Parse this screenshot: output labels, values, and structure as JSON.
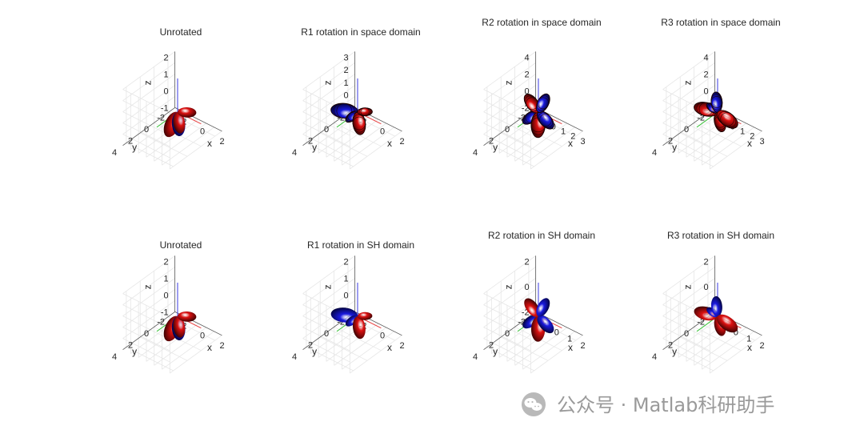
{
  "colors": {
    "lobe_positive": "#dd1111",
    "lobe_negative": "#1a1ae0",
    "axis_x": "#e84040",
    "axis_y": "#30c030",
    "axis_z": "#3a3ae0",
    "grid": "#e6e6e6",
    "box": "#555555",
    "text": "#262626"
  },
  "chart_data": [
    {
      "type": "surface3d",
      "row": 0,
      "col": 0,
      "title": "Unrotated",
      "xlabel": "x",
      "ylabel": "y",
      "zlabel": "z",
      "xticks": [
        "-2",
        "0",
        "2"
      ],
      "yticks": [
        "4",
        "2",
        "0",
        "-2"
      ],
      "zticks": [
        "2",
        "1",
        "0",
        "-1"
      ],
      "mesh": false,
      "lobes": [
        {
          "color": "positive",
          "dir": [
            0.2,
            1.0,
            -0.6
          ],
          "size": 1.0
        },
        {
          "color": "positive",
          "dir": [
            0.6,
            -0.2,
            0.1
          ],
          "size": 0.7
        },
        {
          "color": "positive",
          "dir": [
            -0.5,
            -0.6,
            -0.6
          ],
          "size": 0.8
        },
        {
          "color": "negative",
          "dir": [
            0.3,
            0.2,
            -0.9
          ],
          "size": 0.9
        }
      ]
    },
    {
      "type": "surface3d",
      "row": 0,
      "col": 1,
      "title": "R1 rotation in space domain",
      "xlabel": "x",
      "ylabel": "y",
      "zlabel": "z",
      "xticks": [
        "-2",
        "0",
        "2"
      ],
      "yticks": [
        "4",
        "2",
        "0",
        "-2"
      ],
      "zticks": [
        "3",
        "2",
        "1",
        "0",
        "-1"
      ],
      "mesh": true,
      "lobes": [
        {
          "color": "negative",
          "dir": [
            -0.9,
            0.5,
            0.0
          ],
          "size": 1.0
        },
        {
          "color": "positive",
          "dir": [
            0.1,
            -0.1,
            -1.0
          ],
          "size": 0.85
        },
        {
          "color": "positive",
          "dir": [
            0.5,
            -0.2,
            0.1
          ],
          "size": 0.55
        },
        {
          "color": "negative",
          "dir": [
            -0.2,
            0.4,
            -0.2
          ],
          "size": 0.55
        }
      ]
    },
    {
      "type": "surface3d",
      "row": 0,
      "col": 2,
      "title": "R2 rotation in space domain",
      "xlabel": "x",
      "ylabel": "y",
      "zlabel": "z",
      "xticks": [
        "-1",
        "0",
        "1",
        "2",
        "3"
      ],
      "yticks": [
        "4",
        "2",
        "0",
        "-2"
      ],
      "zticks": [
        "4",
        "2",
        "0",
        "-2"
      ],
      "mesh": true,
      "lobes": [
        {
          "color": "positive",
          "dir": [
            -0.5,
            0.3,
            0.7
          ],
          "size": 0.8
        },
        {
          "color": "negative",
          "dir": [
            0.5,
            0.2,
            0.7
          ],
          "size": 0.75
        },
        {
          "color": "positive",
          "dir": [
            -0.2,
            -0.2,
            -0.9
          ],
          "size": 0.95
        },
        {
          "color": "negative",
          "dir": [
            0.6,
            -0.3,
            -0.6
          ],
          "size": 0.8
        },
        {
          "color": "negative",
          "dir": [
            -0.6,
            0.4,
            -0.5
          ],
          "size": 0.7
        }
      ]
    },
    {
      "type": "surface3d",
      "row": 0,
      "col": 3,
      "title": "R3 rotation in space domain",
      "xlabel": "x",
      "ylabel": "y",
      "zlabel": "z",
      "xticks": [
        "-1",
        "0",
        "1",
        "2",
        "3"
      ],
      "yticks": [
        "4",
        "2",
        "0",
        "-2"
      ],
      "zticks": [
        "4",
        "2",
        "0",
        "-2"
      ],
      "mesh": true,
      "lobes": [
        {
          "color": "positive",
          "dir": [
            -0.8,
            0.4,
            0.1
          ],
          "size": 0.9
        },
        {
          "color": "positive",
          "dir": [
            0.7,
            -0.2,
            -0.3
          ],
          "size": 0.9
        },
        {
          "color": "positive",
          "dir": [
            0.0,
            -0.3,
            -0.9
          ],
          "size": 0.75
        },
        {
          "color": "negative",
          "dir": [
            0.3,
            0.4,
            0.7
          ],
          "size": 0.75
        },
        {
          "color": "negative",
          "dir": [
            -0.2,
            0.5,
            0.5
          ],
          "size": 0.5
        }
      ]
    },
    {
      "type": "surface3d",
      "row": 1,
      "col": 0,
      "title": "Unrotated",
      "xlabel": "x",
      "ylabel": "y",
      "zlabel": "z",
      "xticks": [
        "-2",
        "0",
        "2"
      ],
      "yticks": [
        "4",
        "2",
        "0",
        "-2"
      ],
      "zticks": [
        "2",
        "1",
        "0",
        "-1"
      ],
      "mesh": false,
      "lobes": [
        {
          "color": "positive",
          "dir": [
            0.2,
            1.0,
            -0.6
          ],
          "size": 1.0
        },
        {
          "color": "positive",
          "dir": [
            0.6,
            -0.2,
            0.1
          ],
          "size": 0.7
        },
        {
          "color": "positive",
          "dir": [
            -0.5,
            -0.6,
            -0.6
          ],
          "size": 0.8
        },
        {
          "color": "negative",
          "dir": [
            0.3,
            0.2,
            -0.9
          ],
          "size": 0.9
        }
      ]
    },
    {
      "type": "surface3d",
      "row": 1,
      "col": 1,
      "title": "R1 rotation in SH domain",
      "xlabel": "x",
      "ylabel": "y",
      "zlabel": "z",
      "xticks": [
        "-2",
        "0",
        "2"
      ],
      "yticks": [
        "4",
        "2",
        "0",
        "-2"
      ],
      "zticks": [
        "2",
        "1",
        "0",
        "-1"
      ],
      "mesh": false,
      "lobes": [
        {
          "color": "negative",
          "dir": [
            -0.9,
            0.5,
            0.0
          ],
          "size": 1.0
        },
        {
          "color": "positive",
          "dir": [
            0.1,
            -0.1,
            -1.0
          ],
          "size": 0.85
        },
        {
          "color": "positive",
          "dir": [
            0.5,
            -0.2,
            0.1
          ],
          "size": 0.55
        },
        {
          "color": "negative",
          "dir": [
            -0.2,
            0.4,
            -0.2
          ],
          "size": 0.55
        }
      ]
    },
    {
      "type": "surface3d",
      "row": 1,
      "col": 2,
      "title": "R2 rotation in SH domain",
      "xlabel": "x",
      "ylabel": "y",
      "zlabel": "z",
      "xticks": [
        "-1",
        "0",
        "1",
        "2"
      ],
      "yticks": [
        "4",
        "2",
        "0",
        "-2"
      ],
      "zticks": [
        "2",
        "0",
        "-2"
      ],
      "mesh": false,
      "lobes": [
        {
          "color": "positive",
          "dir": [
            -0.5,
            0.3,
            0.7
          ],
          "size": 0.8
        },
        {
          "color": "negative",
          "dir": [
            0.5,
            0.2,
            0.7
          ],
          "size": 0.75
        },
        {
          "color": "positive",
          "dir": [
            -0.2,
            -0.2,
            -0.9
          ],
          "size": 0.95
        },
        {
          "color": "negative",
          "dir": [
            0.6,
            -0.3,
            -0.6
          ],
          "size": 0.8
        },
        {
          "color": "negative",
          "dir": [
            -0.6,
            0.4,
            -0.5
          ],
          "size": 0.7
        }
      ]
    },
    {
      "type": "surface3d",
      "row": 1,
      "col": 3,
      "title": "R3 rotation in SH domain",
      "xlabel": "x",
      "ylabel": "y",
      "zlabel": "z",
      "xticks": [
        "-1",
        "0",
        "1",
        "2"
      ],
      "yticks": [
        "4",
        "2",
        "0",
        "-2"
      ],
      "zticks": [
        "2",
        "0",
        "-2"
      ],
      "mesh": false,
      "lobes": [
        {
          "color": "positive",
          "dir": [
            -0.8,
            0.4,
            0.1
          ],
          "size": 0.9
        },
        {
          "color": "positive",
          "dir": [
            0.7,
            -0.2,
            -0.3
          ],
          "size": 0.9
        },
        {
          "color": "positive",
          "dir": [
            0.0,
            -0.3,
            -0.9
          ],
          "size": 0.75
        },
        {
          "color": "negative",
          "dir": [
            0.3,
            0.4,
            0.7
          ],
          "size": 0.75
        },
        {
          "color": "negative",
          "dir": [
            -0.2,
            0.5,
            0.5
          ],
          "size": 0.5
        }
      ]
    }
  ],
  "watermark": {
    "text": "公众号 · Matlab科研助手"
  }
}
